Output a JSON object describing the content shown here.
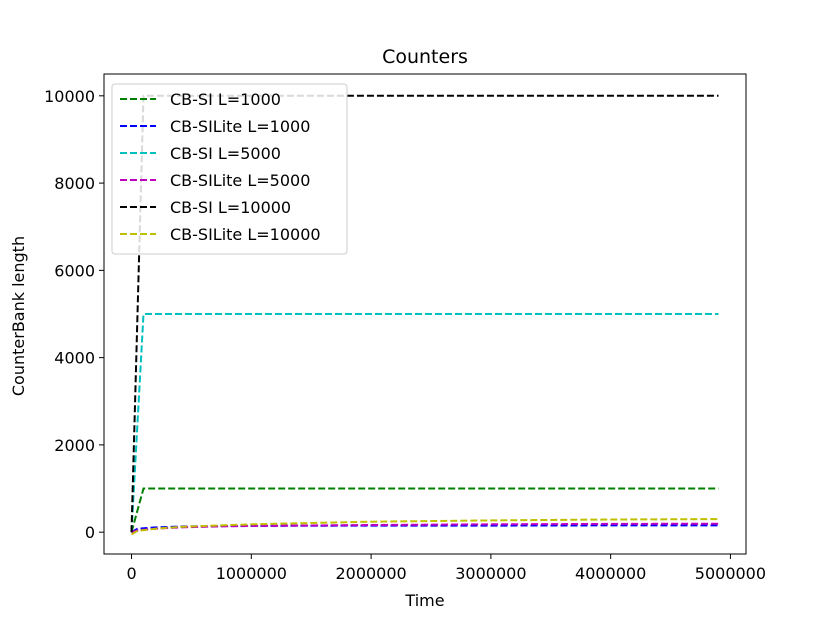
{
  "chart_data": {
    "type": "line",
    "title": "Counters",
    "xlabel": "Time",
    "ylabel": "CounterBank length",
    "xlim": [
      -230000,
      5130000
    ],
    "ylim": [
      -500,
      10500
    ],
    "xticks": [
      0,
      1000000,
      2000000,
      3000000,
      4000000,
      5000000
    ],
    "xtick_labels": [
      "0",
      "1000000",
      "2000000",
      "3000000",
      "4000000",
      "5000000"
    ],
    "yticks": [
      0,
      2000,
      4000,
      6000,
      8000,
      10000
    ],
    "ytick_labels": [
      "0",
      "2000",
      "4000",
      "6000",
      "8000",
      "10000"
    ],
    "grid": false,
    "legend_position": "top-left",
    "series": [
      {
        "name": "CB-SI L=1000",
        "color": "#008000",
        "line_style": "dashed",
        "x": [
          0,
          100000,
          4900000
        ],
        "y": [
          0,
          1000,
          1000
        ]
      },
      {
        "name": "CB-SILite L=1000",
        "color": "#0000ff",
        "line_style": "dashed",
        "x": [
          0,
          50000,
          200000,
          400000,
          700000,
          1000000,
          2000000,
          3000000,
          4000000,
          4900000
        ],
        "y": [
          0,
          80,
          110,
          130,
          140,
          145,
          150,
          150,
          155,
          155
        ]
      },
      {
        "name": "CB-SI L=5000",
        "color": "#00bfbf",
        "line_style": "dashed",
        "x": [
          0,
          100000,
          4900000
        ],
        "y": [
          0,
          5000,
          5000
        ]
      },
      {
        "name": "CB-SILite L=5000",
        "color": "#bf00bf",
        "line_style": "dashed",
        "x": [
          0,
          50000,
          200000,
          400000,
          700000,
          1000000,
          2000000,
          3000000,
          4000000,
          4900000
        ],
        "y": [
          0,
          40,
          80,
          110,
          130,
          145,
          165,
          180,
          190,
          195
        ]
      },
      {
        "name": "CB-SI L=10000",
        "color": "#000000",
        "line_style": "dashed",
        "x": [
          0,
          100000,
          4900000
        ],
        "y": [
          0,
          10000,
          10000
        ]
      },
      {
        "name": "CB-SILite L=10000",
        "color": "#bfbf00",
        "line_style": "dashed",
        "x": [
          0,
          50000,
          200000,
          400000,
          700000,
          1000000,
          1500000,
          2000000,
          3000000,
          4000000,
          4900000
        ],
        "y": [
          -50,
          30,
          80,
          120,
          150,
          180,
          210,
          240,
          270,
          290,
          300
        ]
      }
    ]
  }
}
